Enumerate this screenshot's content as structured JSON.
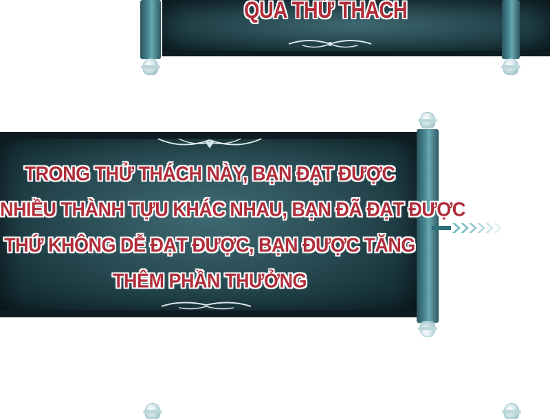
{
  "top_scroll": {
    "title": "QUA THỬ THÁCH"
  },
  "main_scroll": {
    "lines": [
      "TRONG THỬ THÁCH NÀY, BẠN ĐẠT ĐƯỢC",
      "NHIỀU THÀNH TỰU KHÁC NHAU, BẠN ĐÃ ĐẠT ĐƯỢC",
      "THỨ KHÔNG DỄ ĐẠT ĐƯỢC, BẠN ĐƯỢC TĂNG",
      "THÊM PHẦN THƯỞNG"
    ]
  },
  "colors": {
    "text": "#b02d3a",
    "panel": "#2a4d55",
    "rod": "#4a8c96"
  }
}
